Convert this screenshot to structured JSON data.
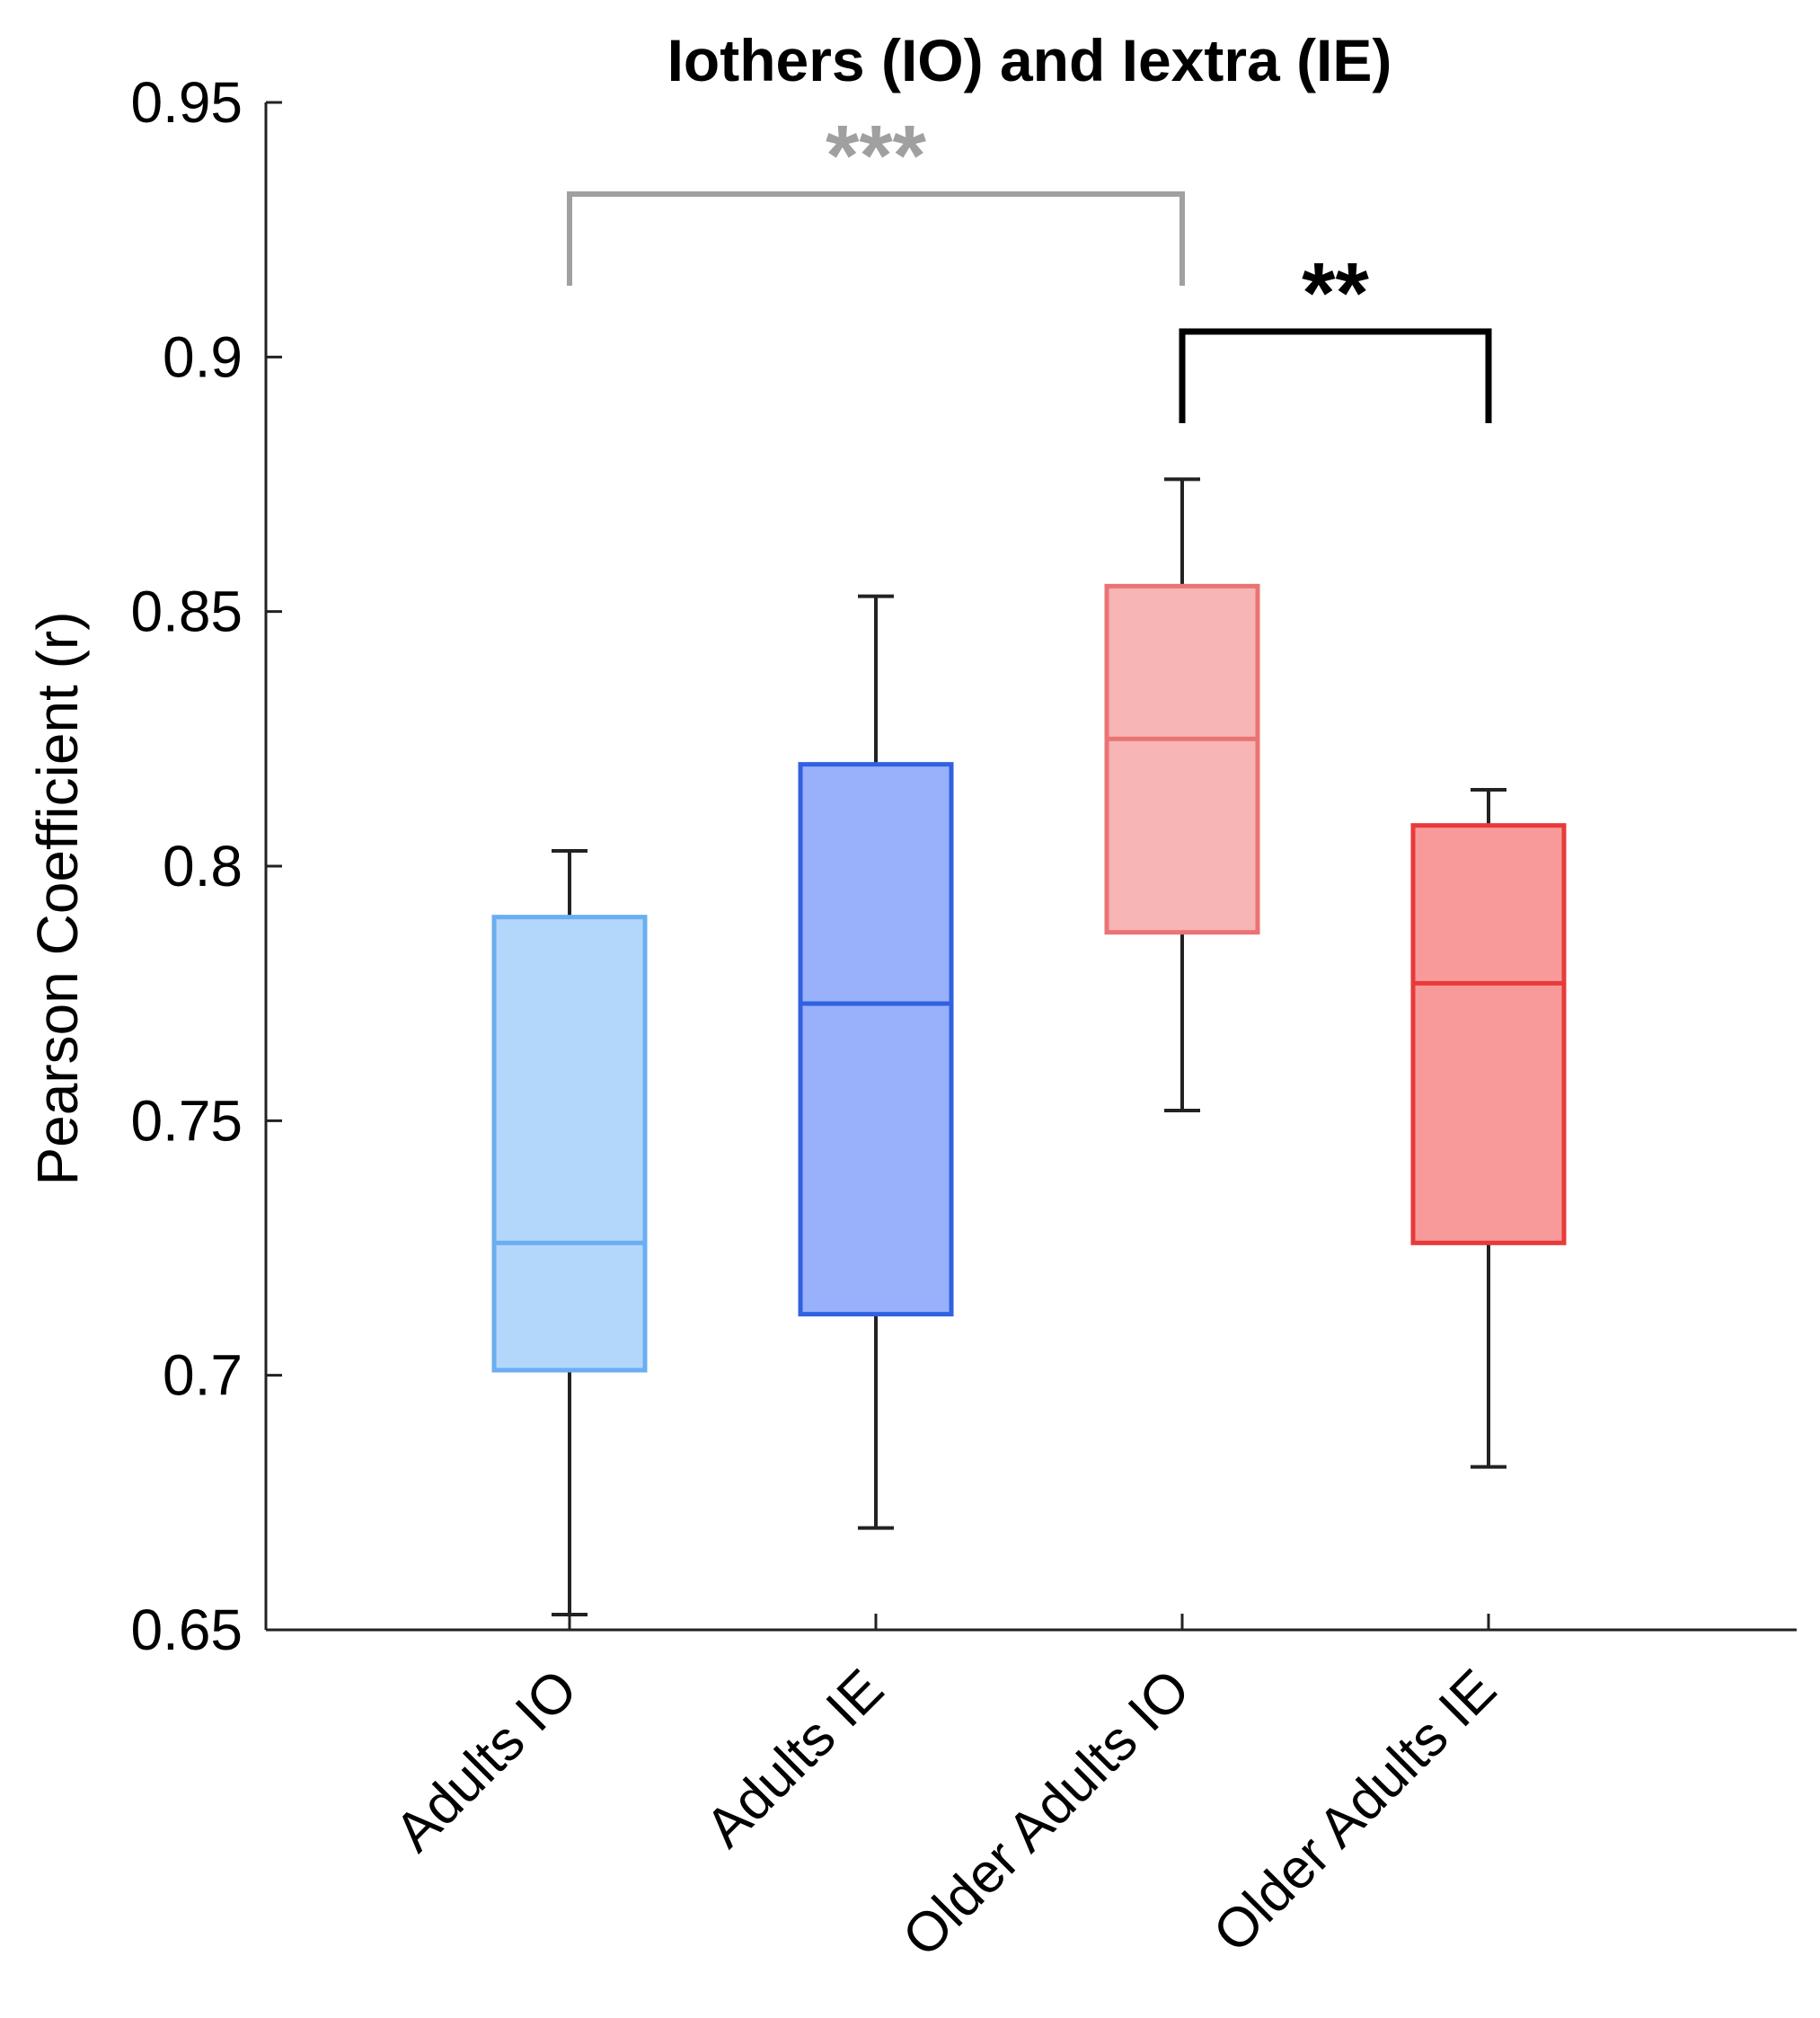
{
  "chart_data": {
    "type": "box",
    "title": "Iothers (IO) and Iextra (IE)",
    "xlabel": "",
    "ylabel": "Pearson Coefficient (r)",
    "ylim": [
      0.65,
      0.95
    ],
    "yticks": [
      0.65,
      0.7,
      0.75,
      0.8,
      0.85,
      0.9,
      0.95
    ],
    "ytick_labels": [
      "0.65",
      "0.7",
      "0.75",
      "0.8",
      "0.85",
      "0.9",
      "0.95"
    ],
    "grid": false,
    "categories": [
      "Adults IO",
      "Adults IE",
      "Older Adults IO",
      "Older Adults IE"
    ],
    "boxes": [
      {
        "name": "Adults IO",
        "whisker_low": 0.653,
        "q1": 0.701,
        "median": 0.726,
        "q3": 0.79,
        "whisker_high": 0.803,
        "fill": "#b3d6fb",
        "edge": "#6aaef0"
      },
      {
        "name": "Adults IE",
        "whisker_low": 0.67,
        "q1": 0.712,
        "median": 0.773,
        "q3": 0.82,
        "whisker_high": 0.853,
        "fill": "#99b1fb",
        "edge": "#3061e0"
      },
      {
        "name": "Older Adults IO",
        "whisker_low": 0.752,
        "q1": 0.787,
        "median": 0.825,
        "q3": 0.855,
        "whisker_high": 0.876,
        "fill": "#f8b5b5",
        "edge": "#ea7474"
      },
      {
        "name": "Older Adults IE",
        "whisker_low": 0.682,
        "q1": 0.726,
        "median": 0.777,
        "q3": 0.808,
        "whisker_high": 0.815,
        "fill": "#f99a9a",
        "edge": "#e83a3a"
      }
    ],
    "whisker_color": "#222222",
    "significance": [
      {
        "from": 0,
        "to": 2,
        "label": "***",
        "color": "#a0a0a0",
        "y": 0.932,
        "leg_bottom": 0.914
      },
      {
        "from": 2,
        "to": 3,
        "label": "**",
        "color": "#000000",
        "y": 0.905,
        "leg_bottom": 0.887
      }
    ]
  }
}
